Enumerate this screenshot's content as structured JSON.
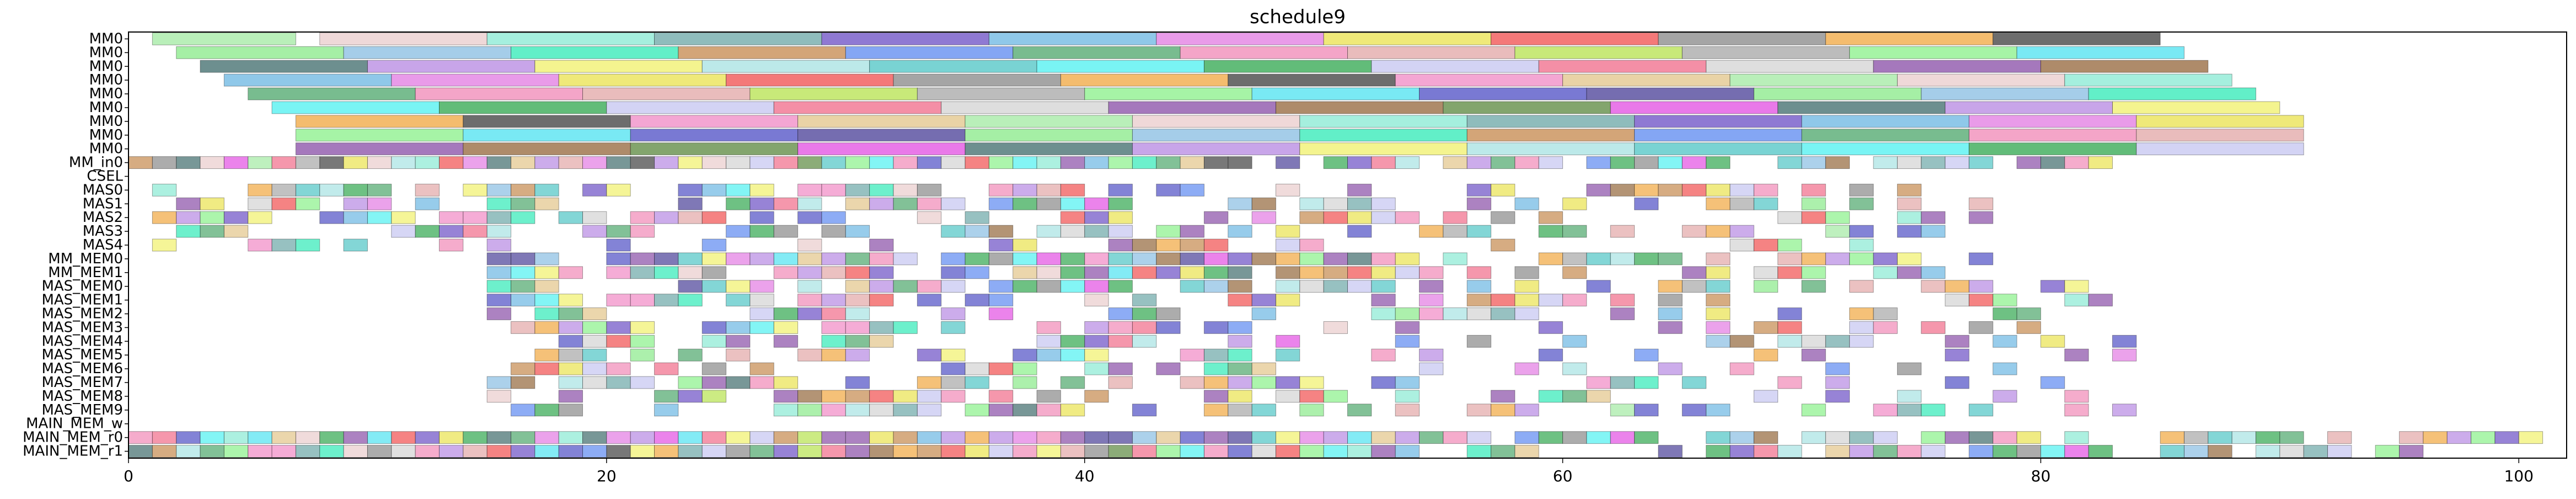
{
  "chart_data": {
    "type": "gantt",
    "title": "schedule9",
    "xlabel": "",
    "ylabel": "",
    "xlim": [
      0,
      102
    ],
    "x_ticks": [
      0,
      20,
      40,
      60,
      80,
      100
    ],
    "x_tick_labels": [
      "0",
      "20",
      "40",
      "60",
      "80",
      "100"
    ],
    "grid": false,
    "legend": "none",
    "rows": [
      "MM0",
      "MM0",
      "MM0",
      "MM0",
      "MM0",
      "MM0",
      "MM0",
      "MM0",
      "MM0",
      "MM_in0",
      "CSEL",
      "MAS0",
      "MAS1",
      "MAS2",
      "MAS3",
      "MAS4",
      "MM_MEM0",
      "MM_MEM1",
      "MAS_MEM0",
      "MAS_MEM1",
      "MAS_MEM2",
      "MAS_MEM3",
      "MAS_MEM4",
      "MAS_MEM5",
      "MAS_MEM6",
      "MAS_MEM7",
      "MAS_MEM8",
      "MAS_MEM9",
      "MAIN_MEM_w",
      "MAIN_MEM_r0",
      "MAIN_MEM_r1"
    ],
    "palette": [
      "#9be89b",
      "#8b5a2b",
      "#3b2f8f",
      "#e8c8c8",
      "#4f7f2f",
      "#7fe87f",
      "#7fe8d0",
      "#e040e0",
      "#7fb8e0",
      "#5f9f9f",
      "#2f5f5f",
      "#1fe8b0",
      "#6040c0",
      "#b07fe0",
      "#c07f3f",
      "#60b0e0",
      "#f0f060",
      "#5080f0",
      "#e070e0",
      "#9fe0e0",
      "#3f9f5f",
      "#e8e040",
      "#40c0c0",
      "#f07fb0",
      "#f04040",
      "#40f0f0",
      "#e0a0a0",
      "#7f7f7f",
      "#20a040",
      "#b0e040",
      "#f0a030",
      "#c0c0f0",
      "#a0a0a0",
      "#2f2f2f",
      "#f06080",
      "#80f080",
      "#f080c0",
      "#d0d0d0",
      "#40e0f0",
      "#e0c080",
      "#7f3f9f",
      "#4040c0"
    ],
    "mm_bars": [
      [
        [
          1,
          7
        ],
        [
          8,
          15
        ],
        [
          15,
          22
        ],
        [
          22,
          29
        ],
        [
          29,
          36
        ],
        [
          36,
          43
        ],
        [
          43,
          50
        ],
        [
          50,
          57
        ],
        [
          57,
          64
        ],
        [
          64,
          71
        ],
        [
          71,
          78
        ],
        [
          78,
          85
        ]
      ],
      [
        [
          2,
          9
        ],
        [
          9,
          16
        ],
        [
          16,
          23
        ],
        [
          23,
          30
        ],
        [
          30,
          37
        ],
        [
          37,
          44
        ],
        [
          44,
          51
        ],
        [
          51,
          58
        ],
        [
          58,
          65
        ],
        [
          65,
          72
        ],
        [
          72,
          79
        ],
        [
          79,
          86
        ]
      ],
      [
        [
          3,
          10
        ],
        [
          10,
          17
        ],
        [
          17,
          24
        ],
        [
          24,
          31
        ],
        [
          31,
          38
        ],
        [
          38,
          45
        ],
        [
          45,
          52
        ],
        [
          52,
          59
        ],
        [
          59,
          66
        ],
        [
          66,
          73
        ],
        [
          73,
          80
        ],
        [
          80,
          87
        ]
      ],
      [
        [
          4,
          11
        ],
        [
          11,
          18
        ],
        [
          18,
          25
        ],
        [
          25,
          32
        ],
        [
          32,
          39
        ],
        [
          39,
          46
        ],
        [
          46,
          53
        ],
        [
          53,
          60
        ],
        [
          60,
          67
        ],
        [
          67,
          74
        ],
        [
          74,
          81
        ],
        [
          81,
          88
        ]
      ],
      [
        [
          5,
          12
        ],
        [
          12,
          19
        ],
        [
          19,
          26
        ],
        [
          26,
          33
        ],
        [
          33,
          40
        ],
        [
          40,
          47
        ],
        [
          47,
          54
        ],
        [
          54,
          61
        ],
        [
          61,
          68
        ],
        [
          68,
          75
        ],
        [
          75,
          82
        ],
        [
          82,
          89
        ]
      ],
      [
        [
          6,
          13
        ],
        [
          13,
          20
        ],
        [
          20,
          27
        ],
        [
          27,
          34
        ],
        [
          34,
          41
        ],
        [
          41,
          48
        ],
        [
          48,
          55
        ],
        [
          55,
          62
        ],
        [
          62,
          69
        ],
        [
          69,
          76
        ],
        [
          76,
          83
        ],
        [
          83,
          90
        ]
      ],
      [
        [
          7,
          14
        ],
        [
          14,
          21
        ],
        [
          21,
          28
        ],
        [
          28,
          35
        ],
        [
          35,
          42
        ],
        [
          42,
          49
        ],
        [
          49,
          56
        ],
        [
          56,
          63
        ],
        [
          63,
          70
        ],
        [
          70,
          77
        ],
        [
          77,
          84
        ],
        [
          84,
          91
        ]
      ],
      [
        [
          7,
          14
        ],
        [
          14,
          21
        ],
        [
          21,
          28
        ],
        [
          28,
          35
        ],
        [
          35,
          42
        ],
        [
          42,
          49
        ],
        [
          49,
          56
        ],
        [
          56,
          63
        ],
        [
          63,
          70
        ],
        [
          70,
          77
        ],
        [
          77,
          84
        ],
        [
          84,
          91
        ]
      ],
      [
        [
          7,
          14
        ],
        [
          14,
          21
        ],
        [
          21,
          28
        ],
        [
          28,
          35
        ],
        [
          35,
          42
        ],
        [
          42,
          49
        ],
        [
          49,
          56
        ],
        [
          56,
          63
        ],
        [
          63,
          70
        ],
        [
          70,
          77
        ],
        [
          77,
          84
        ],
        [
          84,
          91
        ]
      ]
    ],
    "unit_rows": {
      "MM_in0": {
        "range": [
          0,
          84
        ],
        "density": 1.0
      },
      "CSEL": {
        "range": [
          0,
          0
        ],
        "density": 0.0
      },
      "MAS0": {
        "range": [
          1,
          78
        ],
        "density": 0.72
      },
      "MAS1": {
        "range": [
          1,
          78
        ],
        "density": 0.66
      },
      "MAS2": {
        "range": [
          1,
          78
        ],
        "density": 0.62
      },
      "MAS3": {
        "range": [
          1,
          78
        ],
        "density": 0.58
      },
      "MAS4": {
        "range": [
          1,
          78
        ],
        "density": 0.5
      },
      "MM_MEM0": {
        "range": [
          15,
          78
        ],
        "density": 0.85
      },
      "MM_MEM1": {
        "range": [
          15,
          78
        ],
        "density": 0.8
      },
      "MAS_MEM0": {
        "range": [
          15,
          84
        ],
        "density": 0.72
      },
      "MAS_MEM1": {
        "range": [
          15,
          84
        ],
        "density": 0.62
      },
      "MAS_MEM2": {
        "range": [
          15,
          84
        ],
        "density": 0.52
      },
      "MAS_MEM3": {
        "range": [
          15,
          84
        ],
        "density": 0.58
      },
      "MAS_MEM4": {
        "range": [
          15,
          84
        ],
        "density": 0.5
      },
      "MAS_MEM5": {
        "range": [
          15,
          84
        ],
        "density": 0.48
      },
      "MAS_MEM6": {
        "range": [
          15,
          84
        ],
        "density": 0.5
      },
      "MAS_MEM7": {
        "range": [
          15,
          84
        ],
        "density": 0.52
      },
      "MAS_MEM8": {
        "range": [
          15,
          84
        ],
        "density": 0.56
      },
      "MAS_MEM9": {
        "range": [
          15,
          84
        ],
        "density": 0.54
      },
      "MAIN_MEM_w": {
        "range": [
          0,
          0
        ],
        "density": 0.0
      },
      "MAIN_MEM_r0": {
        "range": [
          0,
          102
        ],
        "density": 0.97
      },
      "MAIN_MEM_r1": {
        "range": [
          0,
          96
        ],
        "density": 0.95
      }
    }
  }
}
